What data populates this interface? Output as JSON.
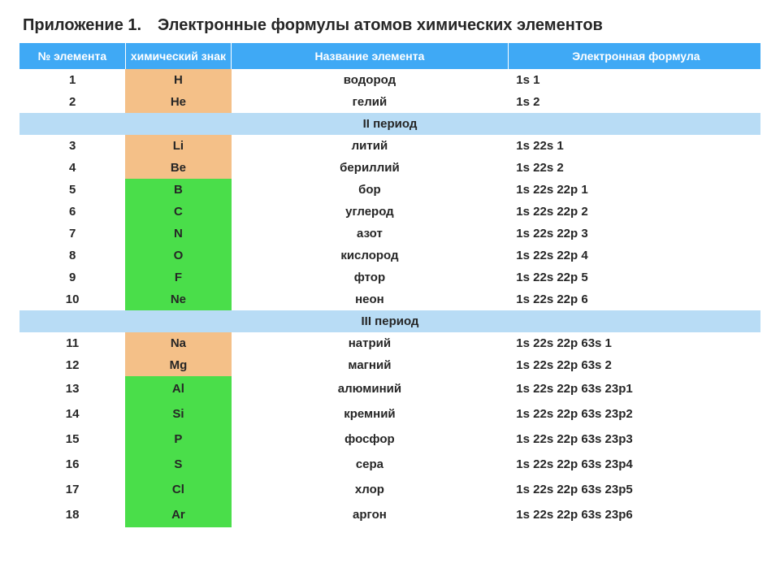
{
  "title": "Приложение 1. Электронные формулы атомов химических элементов",
  "headers": {
    "num": "№ элемента",
    "sym": "химический знак",
    "name": "Название элемента",
    "form": "Электронная формула"
  },
  "period2": "II период",
  "period3": "III период",
  "colors": {
    "header_bg": "#3fa9f5",
    "header_fg": "#ffffff",
    "period_bg": "#b8dcf5",
    "peach": "#f4c088",
    "green": "#4ade4a",
    "text": "#262626",
    "page_bg": "#ffffff"
  },
  "rows": [
    {
      "n": "1",
      "sym": "H",
      "sym_bg": "peach",
      "name": "водород",
      "form": "1s 1"
    },
    {
      "n": "2",
      "sym": "He",
      "sym_bg": "peach",
      "name": "гелий",
      "form": "1s 2"
    },
    {
      "n": "3",
      "sym": "Li",
      "sym_bg": "peach",
      "name": "литий",
      "form": "1s 22s 1"
    },
    {
      "n": "4",
      "sym": "Be",
      "sym_bg": "peach",
      "name": "бериллий",
      "form": "1s 22s 2"
    },
    {
      "n": "5",
      "sym": "B",
      "sym_bg": "green",
      "name": "бор",
      "form": "1s 22s 22p 1"
    },
    {
      "n": "6",
      "sym": "C",
      "sym_bg": "green",
      "name": "углерод",
      "form": "1s 22s 22p 2"
    },
    {
      "n": "7",
      "sym": "N",
      "sym_bg": "green",
      "name": "азот",
      "form": "1s 22s 22p 3"
    },
    {
      "n": "8",
      "sym": "O",
      "sym_bg": "green",
      "name": "кислород",
      "form": "1s 22s 22p 4"
    },
    {
      "n": "9",
      "sym": "F",
      "sym_bg": "green",
      "name": "фтор",
      "form": "1s 22s 22p 5"
    },
    {
      "n": "10",
      "sym": "Ne",
      "sym_bg": "green",
      "name": "неон",
      "form": "1s 22s 22p 6"
    },
    {
      "n": "11",
      "sym": "Na",
      "sym_bg": "peach",
      "name": "натрий",
      "form": "1s 22s 22p 63s 1"
    },
    {
      "n": "12",
      "sym": "Mg",
      "sym_bg": "peach",
      "name": "магний",
      "form": "1s 22s 22p 63s 2"
    },
    {
      "n": "13",
      "sym": "Al",
      "sym_bg": "green",
      "name": "алюминий",
      "form": "1s 22s 22p 63s 23p1"
    },
    {
      "n": "14",
      "sym": "Si",
      "sym_bg": "green",
      "name": "кремний",
      "form": "1s 22s 22p 63s 23p2"
    },
    {
      "n": "15",
      "sym": "P",
      "sym_bg": "green",
      "name": "фосфор",
      "form": "1s 22s 22p 63s 23p3"
    },
    {
      "n": "16",
      "sym": "S",
      "sym_bg": "green",
      "name": "сера",
      "form": "1s 22s 22p 63s 23p4"
    },
    {
      "n": "17",
      "sym": "Cl",
      "sym_bg": "green",
      "name": "хлор",
      "form": "1s 22s 22p 63s 23p5"
    },
    {
      "n": "18",
      "sym": "Ar",
      "sym_bg": "green",
      "name": "аргон",
      "form": "1s 22s 22p 63s 23p6"
    }
  ]
}
